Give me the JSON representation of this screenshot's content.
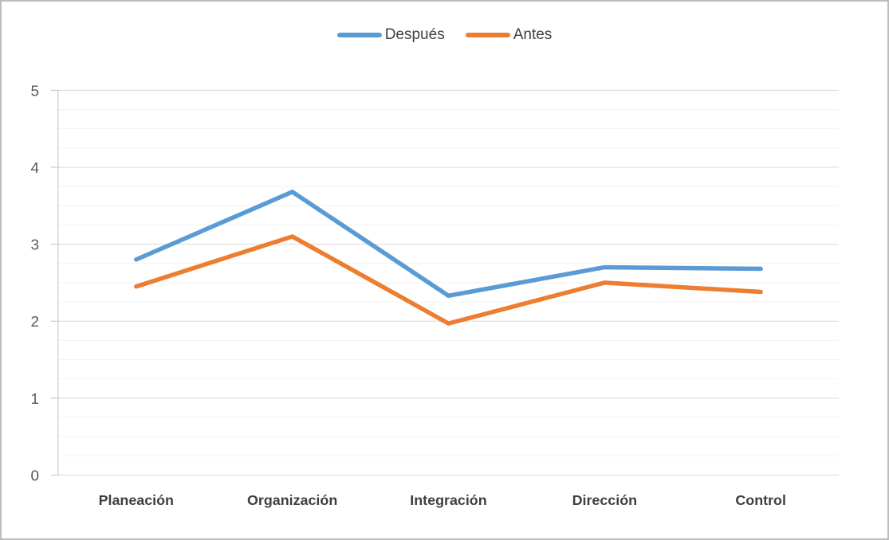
{
  "chart_data": {
    "type": "line",
    "categories": [
      "Planeación",
      "Organización",
      "Integración",
      "Dirección",
      "Control"
    ],
    "series": [
      {
        "name": "Después",
        "color": "#5B9BD5",
        "values": [
          2.8,
          3.68,
          2.33,
          2.7,
          2.68
        ]
      },
      {
        "name": "Antes",
        "color": "#ED7D31",
        "values": [
          2.45,
          3.1,
          1.97,
          2.5,
          2.38
        ]
      }
    ],
    "xlabel": "",
    "ylabel": "",
    "ylim": [
      0,
      5
    ],
    "yticks": [
      0,
      1,
      2,
      3,
      4,
      5
    ],
    "minor_grid_step": 0.25,
    "grid": true,
    "legend_position": "top"
  },
  "colors": {
    "major_grid": "#D9D9D9",
    "minor_grid": "#F2F2F2",
    "axis": "#BFBFBF",
    "tick_label": "#595959",
    "category_label": "#3F3F3F",
    "border": "#BDBDBD",
    "background": "#FFFFFF"
  }
}
